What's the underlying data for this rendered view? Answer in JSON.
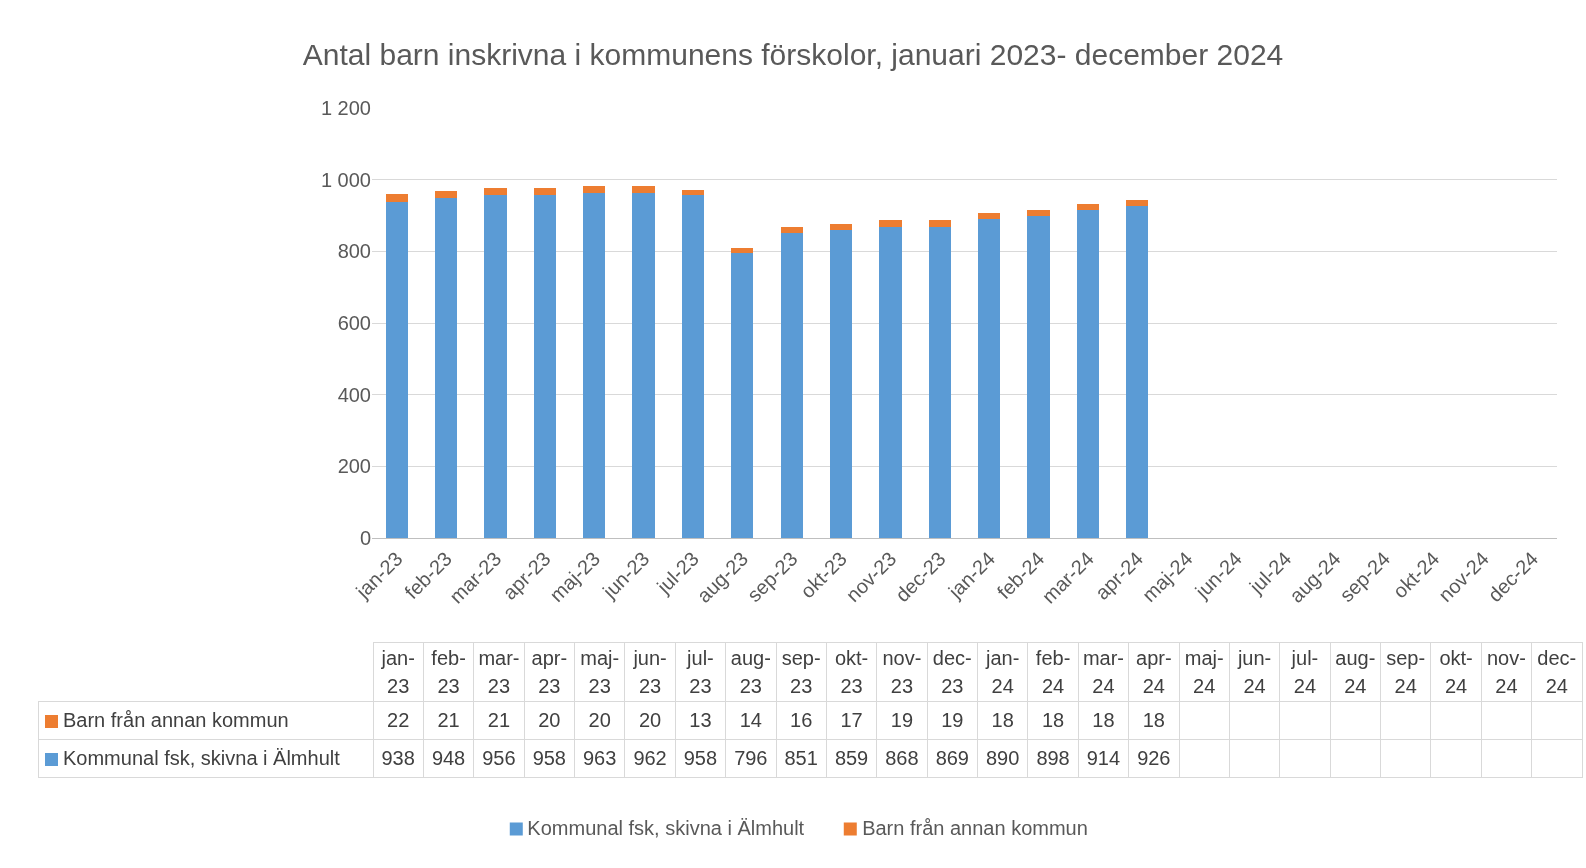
{
  "chart_data": {
    "type": "bar",
    "title": "Antal barn inskrivna i kommunens förskolor, januari 2023- december 2024",
    "categories": [
      "jan-23",
      "feb-23",
      "mar-23",
      "apr-23",
      "maj-23",
      "jun-23",
      "jul-23",
      "aug-23",
      "sep-23",
      "okt-23",
      "nov-23",
      "dec-23",
      "jan-24",
      "feb-24",
      "mar-24",
      "apr-24",
      "maj-24",
      "jun-24",
      "jul-24",
      "aug-24",
      "sep-24",
      "okt-24",
      "nov-24",
      "dec-24"
    ],
    "series": [
      {
        "name": "Kommunal fsk, skivna i Älmhult",
        "color": "#5b9bd5",
        "values": [
          938,
          948,
          956,
          958,
          963,
          962,
          958,
          796,
          851,
          859,
          868,
          869,
          890,
          898,
          914,
          926,
          null,
          null,
          null,
          null,
          null,
          null,
          null,
          null
        ]
      },
      {
        "name": "Barn från annan kommun",
        "color": "#ed7d31",
        "values": [
          22,
          21,
          21,
          20,
          20,
          20,
          13,
          14,
          16,
          17,
          19,
          19,
          18,
          18,
          18,
          18,
          null,
          null,
          null,
          null,
          null,
          null,
          null,
          null
        ]
      }
    ],
    "stacked": true,
    "ylim": [
      0,
      1200
    ],
    "yticks": [
      0,
      200,
      400,
      600,
      800,
      {
        "value": 1000,
        "label": "1 000"
      },
      {
        "value": 1200,
        "label": "1 200"
      }
    ],
    "grid": "y",
    "legend": "bottom",
    "data_labels": true
  }
}
